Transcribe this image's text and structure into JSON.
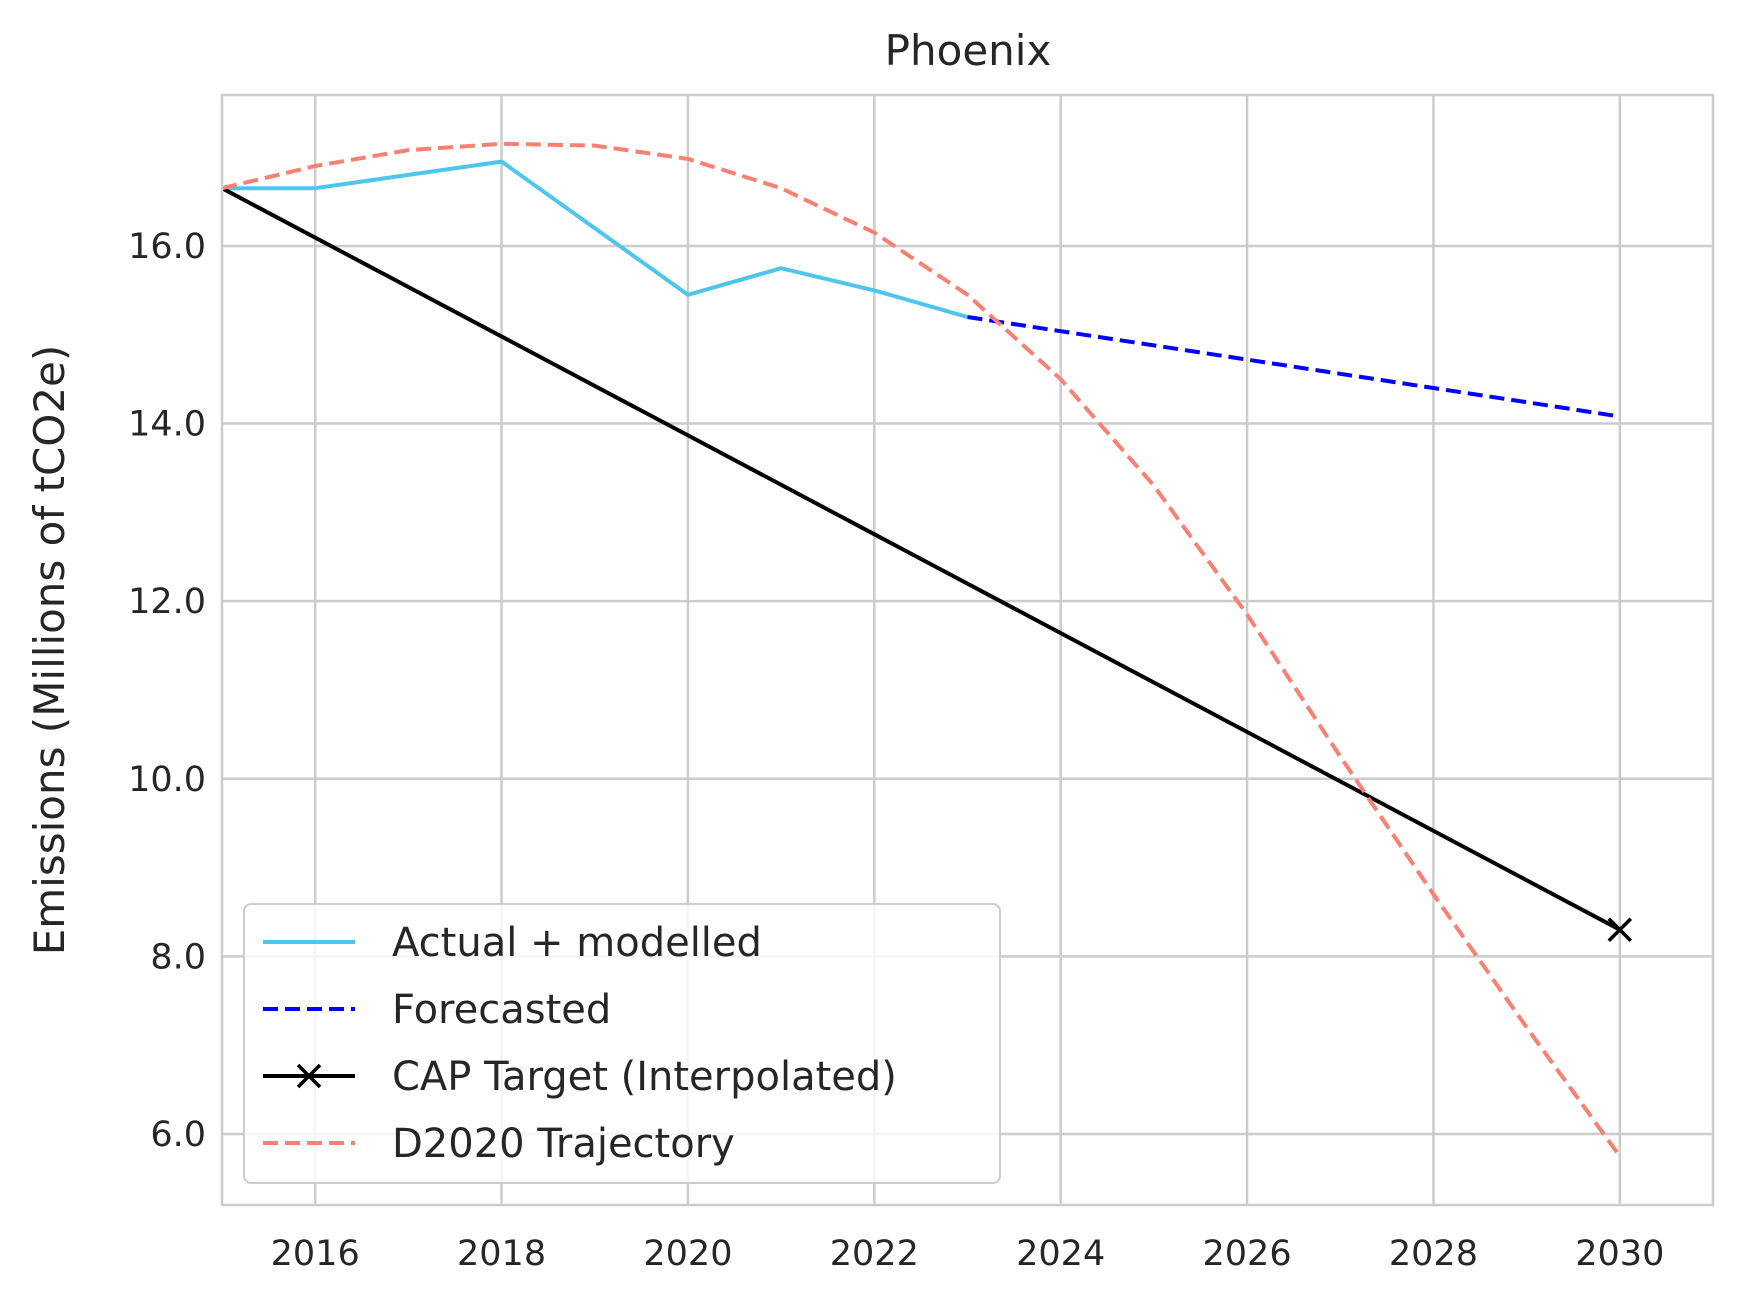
{
  "chart_data": {
    "type": "line",
    "title": "Phoenix",
    "xlabel": "",
    "ylabel": "Emissions (Millions of tCO2e)",
    "xlim": [
      2015,
      2031
    ],
    "ylim": [
      5.2,
      17.7
    ],
    "x_ticks": [
      2016,
      2018,
      2020,
      2022,
      2024,
      2026,
      2028,
      2030
    ],
    "x_tick_labels": [
      "2016",
      "2018",
      "2020",
      "2022",
      "2024",
      "2026",
      "2028",
      "2030"
    ],
    "y_ticks": [
      6,
      8,
      10,
      12,
      14,
      16
    ],
    "y_tick_labels": [
      "6.0",
      "8.0",
      "10.0",
      "12.0",
      "14.0",
      "16.0"
    ],
    "grid": true,
    "legend_position": "lower-left",
    "series": [
      {
        "name": "Actual + modelled",
        "color": "#4ec5ec",
        "style": "solid",
        "x": [
          2015,
          2016,
          2017,
          2018,
          2019,
          2020,
          2021,
          2022,
          2023
        ],
        "y": [
          16.65,
          16.65,
          16.8,
          16.95,
          16.2,
          15.45,
          15.75,
          15.5,
          15.2
        ]
      },
      {
        "name": "Forecasted",
        "color": "#0000ff",
        "style": "dashed",
        "x": [
          2023,
          2024,
          2025,
          2026,
          2027,
          2028,
          2029,
          2030
        ],
        "y": [
          15.2,
          15.04,
          14.88,
          14.72,
          14.56,
          14.4,
          14.24,
          14.08
        ]
      },
      {
        "name": "CAP Target (Interpolated)",
        "color": "#000000",
        "style": "solid",
        "marker": "x",
        "marker_points": [
          [
            2030,
            8.3
          ]
        ],
        "x": [
          2015,
          2030
        ],
        "y": [
          16.65,
          8.3
        ]
      },
      {
        "name": "D2020 Trajectory",
        "color": "#fa8072",
        "style": "dashed",
        "x": [
          2015,
          2016,
          2017,
          2018,
          2019,
          2020,
          2021,
          2022,
          2023,
          2024,
          2025,
          2026,
          2027,
          2028,
          2029,
          2030
        ],
        "y": [
          16.65,
          16.9,
          17.08,
          17.15,
          17.13,
          16.98,
          16.65,
          16.15,
          15.45,
          14.5,
          13.3,
          11.85,
          10.25,
          8.7,
          7.2,
          5.75
        ]
      }
    ]
  }
}
